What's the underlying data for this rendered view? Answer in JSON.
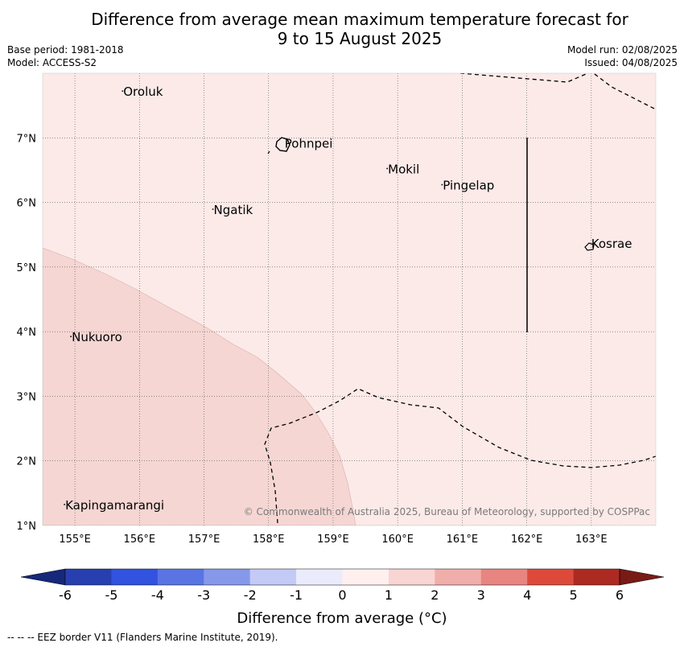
{
  "title_line1": "Difference from average mean maximum temperature forecast for",
  "title_line2": "9 to 15 August 2025",
  "meta_left": [
    "Base period: 1981-2018",
    "Model: ACCESS-S2"
  ],
  "meta_right": [
    "Model run: 02/08/2025",
    "Issued: 04/08/2025"
  ],
  "map": {
    "lon_range": [
      154.5,
      164
    ],
    "lat_range": [
      1,
      8
    ],
    "lon_ticks": [
      155,
      156,
      157,
      158,
      159,
      160,
      161,
      162,
      163
    ],
    "lat_ticks": [
      1,
      2,
      3,
      4,
      5,
      6,
      7
    ],
    "lon_labels": [
      "155°E",
      "156°E",
      "157°E",
      "158°E",
      "159°E",
      "160°E",
      "161°E",
      "162°E",
      "163°E"
    ],
    "lat_labels": [
      "1°N",
      "2°N",
      "3°N",
      "4°N",
      "5°N",
      "6°N",
      "7°N"
    ],
    "gridlines": true,
    "background_anomaly_color": "#fbeae8",
    "shaded_region_color": "#f5d6d3",
    "places": [
      {
        "name": "Oroluk",
        "lon": 155.75,
        "lat": 7.65
      },
      {
        "name": "Pohnpei",
        "lon": 158.25,
        "lat": 6.85
      },
      {
        "name": "Mokil",
        "lon": 159.85,
        "lat": 6.45
      },
      {
        "name": "Pingelap",
        "lon": 160.7,
        "lat": 6.2
      },
      {
        "name": "Ngatik",
        "lon": 157.15,
        "lat": 5.82
      },
      {
        "name": "Kosrae",
        "lon": 163.0,
        "lat": 5.3
      },
      {
        "name": "Nukuoro",
        "lon": 154.95,
        "lat": 3.85
      },
      {
        "name": "Kapingamarangi",
        "lon": 154.85,
        "lat": 1.25
      }
    ],
    "copyright": "© Commonwealth of Australia 2025, Bureau of Meteorology, supported by COSPPac"
  },
  "colorbar": {
    "labels": [
      "-6",
      "-5",
      "-4",
      "-3",
      "-2",
      "-1",
      "0",
      "1",
      "2",
      "3",
      "4",
      "5",
      "6"
    ],
    "colors": [
      "#283fb0",
      "#3153df",
      "#5a74e3",
      "#8598ea",
      "#c3caf5",
      "#eaecfb",
      "#fff0ef",
      "#f8d5d2",
      "#f0aeaa",
      "#e88580",
      "#dd4a3c",
      "#ad2a23"
    ],
    "under_color": "#16287a",
    "over_color": "#7a1a15",
    "title": "Difference from average (°C)"
  },
  "footer": "--  --  -- EEZ border V11 (Flanders Marine Institute, 2019)."
}
